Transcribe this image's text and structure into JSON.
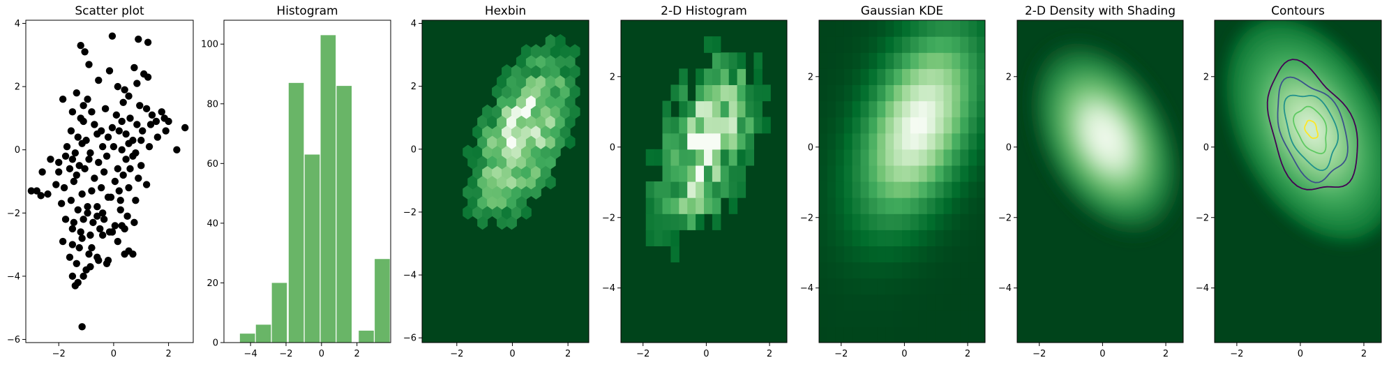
{
  "figure": {
    "background": "#ffffff"
  },
  "chart_data": [
    {
      "type": "scatter",
      "title": "Scatter plot",
      "xlim": [
        -3.2,
        2.9
      ],
      "ylim": [
        -6.1,
        4.1
      ],
      "xticks": [
        "−2",
        "0",
        "2"
      ],
      "xtick_values": [
        -2,
        0,
        2
      ],
      "yticks": [
        "−6",
        "−4",
        "−2",
        "0",
        "2",
        "4"
      ],
      "ytick_values": [
        -6,
        -4,
        -2,
        0,
        2,
        4
      ],
      "color": "#000000",
      "x": [
        -1.2,
        -1.05,
        -0.9,
        -0.05,
        0.9,
        1.25,
        -0.15,
        -0.55,
        0.75,
        1.25,
        -1.35,
        -1.1,
        -0.95,
        0.15,
        0.4,
        0.85,
        1.1,
        -1.85,
        -1.5,
        -1.2,
        -0.8,
        -0.3,
        0.1,
        0.35,
        0.55,
        0.95,
        1.4,
        1.75,
        2.0,
        -1.1,
        -0.7,
        -0.45,
        -0.05,
        0.3,
        0.6,
        0.85,
        1.2,
        1.55,
        1.85,
        -1.55,
        -1.3,
        -1.0,
        -0.6,
        -0.2,
        0.2,
        0.45,
        0.7,
        1.05,
        1.35,
        1.6,
        1.9,
        2.6,
        -1.7,
        -1.4,
        -1.15,
        -0.85,
        -0.4,
        0.0,
        0.3,
        0.55,
        0.8,
        1.0,
        1.3,
        -2.0,
        -1.75,
        -1.5,
        -1.25,
        -0.9,
        -0.55,
        -0.25,
        0.15,
        0.45,
        0.7,
        1.0,
        -2.3,
        -2.0,
        -1.6,
        -1.35,
        -1.05,
        -0.7,
        -0.35,
        0.05,
        0.35,
        0.6,
        0.9,
        1.2,
        2.3,
        -2.6,
        -2.8,
        -2.1,
        -1.8,
        -1.45,
        -1.15,
        -0.8,
        -0.45,
        -0.1,
        0.2,
        0.55,
        0.8,
        -2.4,
        -1.9,
        -1.55,
        -1.3,
        -0.95,
        -0.6,
        -0.2,
        0.25,
        0.5,
        -3.0,
        -2.65,
        -1.75,
        -1.45,
        -1.1,
        -0.75,
        -0.35,
        0.05,
        0.4,
        0.75,
        -1.5,
        -1.2,
        -0.85,
        -0.5,
        -0.05,
        0.3,
        -1.85,
        -1.5,
        -1.15,
        -0.8,
        -0.4,
        -0.05,
        -1.6,
        -1.25,
        -0.9,
        -0.55,
        -0.15,
        -1.35,
        -1.0,
        -0.6,
        -0.25,
        0.4,
        0.55,
        0.7,
        -1.5,
        -1.3,
        -0.85,
        -0.2,
        -1.4,
        -1.1,
        -1.15,
        -0.4,
        0.25,
        0.15,
        -0.95,
        -0.6
      ],
      "y": [
        3.3,
        3.1,
        2.7,
        3.6,
        3.5,
        3.4,
        2.5,
        2.2,
        2.6,
        2.3,
        1.8,
        1.4,
        1.6,
        2.0,
        1.9,
        2.1,
        2.4,
        1.6,
        1.2,
        1.0,
        1.2,
        1.3,
        1.1,
        1.5,
        1.7,
        1.4,
        1.1,
        1.2,
        0.9,
        0.9,
        0.8,
        0.6,
        0.7,
        0.9,
        1.0,
        0.8,
        1.3,
        0.9,
        1.0,
        0.6,
        0.4,
        0.3,
        0.5,
        0.4,
        0.6,
        0.5,
        0.3,
        0.6,
        0.8,
        0.4,
        0.6,
        0.7,
        0.1,
        -0.1,
        0.2,
        -0.1,
        0.1,
        0.1,
        0.0,
        0.2,
        -0.1,
        0.3,
        0.1,
        -0.4,
        -0.2,
        -0.3,
        -0.5,
        -0.3,
        -0.4,
        -0.2,
        -0.6,
        -0.3,
        -0.2,
        -0.5,
        -0.3,
        -0.7,
        -0.6,
        -0.8,
        -0.6,
        -0.9,
        -0.7,
        -1.0,
        -0.8,
        -0.6,
        -0.9,
        -1.1,
        0.0,
        -0.7,
        -1.3,
        -1.1,
        -1.2,
        -1.0,
        -1.4,
        -1.3,
        -1.2,
        -1.5,
        -1.3,
        -1.2,
        -1.6,
        -1.4,
        -1.7,
        -1.6,
        -1.9,
        -2.0,
        -1.8,
        -1.5,
        -1.9,
        -2.1,
        -1.3,
        -1.45,
        -2.2,
        -2.3,
        -2.2,
        -2.3,
        -2.2,
        -2.4,
        -2.5,
        -2.3,
        -2.5,
        -2.6,
        -2.7,
        -2.5,
        -2.6,
        -2.4,
        -2.9,
        -3.0,
        -2.8,
        -3.1,
        -2.7,
        -2.6,
        -3.4,
        -3.1,
        -3.3,
        -3.5,
        -2.6,
        -3.6,
        -3.8,
        -3.4,
        -3.6,
        -3.3,
        -3.2,
        -3.3,
        -4.0,
        -4.2,
        -3.7,
        -3.5,
        -4.3,
        -4.0,
        -5.6,
        -2.0,
        -1.6,
        -2.9,
        -1.8,
        -2.1
      ]
    },
    {
      "type": "bar",
      "title": "Histogram",
      "xlim": [
        -5.5,
        3.9
      ],
      "ylim": [
        0,
        108
      ],
      "xticks": [
        "−4",
        "−2",
        "0",
        "2"
      ],
      "xtick_values": [
        -4,
        -2,
        0,
        2
      ],
      "yticks": [
        "0",
        "20",
        "40",
        "60",
        "80",
        "100"
      ],
      "ytick_values": [
        0,
        20,
        40,
        60,
        80,
        100
      ],
      "color": "#69b567",
      "bin_width": 0.85,
      "bin_starts": [
        -4.6,
        -3.7,
        -2.8,
        -1.85,
        -0.95,
        -0.05,
        0.85,
        2.1,
        3.0
      ],
      "values": [
        3,
        6,
        20,
        87,
        63,
        103,
        86,
        4,
        28
      ]
    },
    {
      "type": "heatmap",
      "title": "Hexbin",
      "colormap": [
        "#00441b",
        "#006d2c",
        "#238b45",
        "#41ab5d",
        "#74c476",
        "#a1d99b",
        "#c7e9c0",
        "#f7fcf5"
      ],
      "xlim": [
        -3.25,
        2.75
      ],
      "ylim": [
        -6.15,
        4.1
      ],
      "xticks": [
        "−2",
        "0",
        "2"
      ],
      "xtick_values": [
        -2,
        0,
        2
      ],
      "yticks": [
        "−6",
        "−4",
        "−2",
        "0",
        "2",
        "4"
      ],
      "ytick_values": [
        -6,
        -4,
        -2,
        0,
        2,
        4
      ],
      "x_range": [
        -3.0,
        2.6
      ],
      "y_range": [
        -5.85,
        3.75
      ],
      "center": [
        0.35,
        0.4
      ],
      "spread": [
        1.15,
        1.75
      ],
      "correlation": 0.55,
      "peak_level": 0.95
    },
    {
      "type": "heatmap",
      "title": "2-D Histogram",
      "colormap": [
        "#00441b",
        "#006d2c",
        "#238b45",
        "#41ab5d",
        "#74c476",
        "#a1d99b",
        "#c7e9c0",
        "#f7fcf5"
      ],
      "xlim": [
        -2.7,
        2.55
      ],
      "ylim": [
        -5.55,
        3.6
      ],
      "xticks": [
        "−2",
        "0",
        "2"
      ],
      "xtick_values": [
        -2,
        0,
        2
      ],
      "yticks": [
        "−4",
        "−2",
        "0",
        "2"
      ],
      "ytick_values": [
        -4,
        -2,
        0,
        2
      ],
      "bins": [
        20,
        20
      ],
      "center": [
        0.0,
        0.1
      ],
      "spread": [
        1.0,
        1.6
      ],
      "correlation": 0.5,
      "peak_level": 0.95
    },
    {
      "type": "heatmap",
      "title": "Gaussian KDE",
      "colormap": [
        "#00441b",
        "#006d2c",
        "#238b45",
        "#41ab5d",
        "#74c476",
        "#a1d99b",
        "#c7e9c0",
        "#f7fcf5"
      ],
      "xlim": [
        -2.7,
        2.55
      ],
      "ylim": [
        -5.55,
        3.6
      ],
      "xticks": [
        "−2",
        "0",
        "2"
      ],
      "xtick_values": [
        -2,
        0,
        2
      ],
      "yticks": [
        "−4",
        "−2",
        "0",
        "2"
      ],
      "ytick_values": [
        -4,
        -2,
        0,
        2
      ],
      "bins": [
        20,
        20
      ],
      "center": [
        0.45,
        0.65
      ],
      "spread": [
        1.2,
        1.75
      ],
      "correlation": 0.45,
      "peak_level": 1.0
    },
    {
      "type": "heatmap",
      "title": "2-D Density with Shading",
      "colormap": [
        "#00441b",
        "#006d2c",
        "#238b45",
        "#41ab5d",
        "#74c476",
        "#a1d99b",
        "#c7e9c0",
        "#f7fcf5"
      ],
      "xlim": [
        -2.7,
        2.55
      ],
      "ylim": [
        -5.55,
        3.6
      ],
      "xticks": [
        "−2",
        "0",
        "2"
      ],
      "xtick_values": [
        -2,
        0,
        2
      ],
      "yticks": [
        "−4",
        "−2",
        "0",
        "2"
      ],
      "ytick_values": [
        -4,
        -2,
        0,
        2
      ],
      "center": [
        0.1,
        0.25
      ],
      "spread": [
        0.9,
        1.3
      ],
      "correlation": 0.5,
      "peak_level": 1.0
    },
    {
      "type": "heatmap",
      "title": "Contours",
      "colormap": [
        "#00441b",
        "#006d2c",
        "#238b45",
        "#41ab5d",
        "#74c476",
        "#a1d99b",
        "#c7e9c0",
        "#f7fcf5"
      ],
      "contour_colors": [
        "#440154",
        "#3b528b",
        "#21918c",
        "#5ec962",
        "#fde725"
      ],
      "xlim": [
        -2.7,
        2.55
      ],
      "ylim": [
        -5.55,
        3.6
      ],
      "xticks": [
        "−2",
        "0",
        "2"
      ],
      "xtick_values": [
        -2,
        0,
        2
      ],
      "yticks": [
        "−4",
        "−2",
        "0",
        "2"
      ],
      "ytick_values": [
        -4,
        -2,
        0,
        2
      ],
      "center": [
        0.35,
        0.5
      ],
      "spread": [
        1.0,
        1.5
      ],
      "correlation": 0.5,
      "peak_level": 0.85
    }
  ]
}
